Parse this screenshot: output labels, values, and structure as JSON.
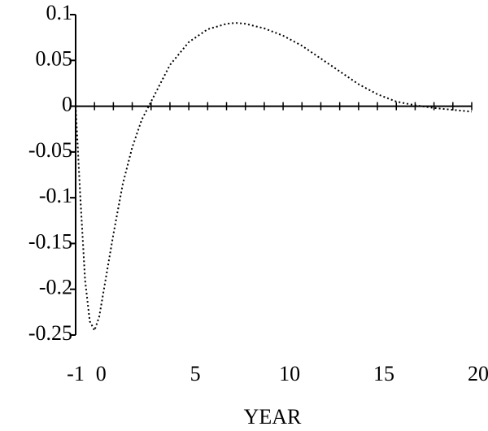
{
  "chart_data": {
    "type": "line",
    "xlabel": "YEAR",
    "x": [
      -1,
      -0.75,
      -0.5,
      -0.25,
      0,
      0.25,
      0.5,
      1,
      1.5,
      2,
      2.5,
      3,
      3.5,
      4,
      5,
      6,
      7,
      7.5,
      8,
      9,
      10,
      11,
      12,
      13,
      14,
      15,
      16,
      17,
      18,
      19,
      20
    ],
    "values": [
      0,
      -0.1,
      -0.19,
      -0.235,
      -0.245,
      -0.23,
      -0.2,
      -0.14,
      -0.085,
      -0.045,
      -0.015,
      0.005,
      0.025,
      0.045,
      0.07,
      0.084,
      0.09,
      0.091,
      0.09,
      0.085,
      0.077,
      0.066,
      0.052,
      0.038,
      0.024,
      0.013,
      0.005,
      0.001,
      -0.002,
      -0.004,
      -0.006
    ],
    "color": "#000000",
    "xlim": [
      -1,
      20
    ],
    "xticks": [
      -1,
      0,
      5,
      10,
      15,
      20
    ],
    "xminor_ticks": [
      -1,
      0,
      1,
      2,
      3,
      4,
      5,
      6,
      7,
      8,
      9,
      10,
      11,
      12,
      13,
      14,
      15,
      16,
      17,
      18,
      19,
      20
    ],
    "ylim": [
      -0.25,
      0.1
    ],
    "yticks": [
      0.1,
      0.05,
      0,
      -0.05,
      -0.1,
      -0.15,
      -0.2,
      -0.25
    ]
  }
}
